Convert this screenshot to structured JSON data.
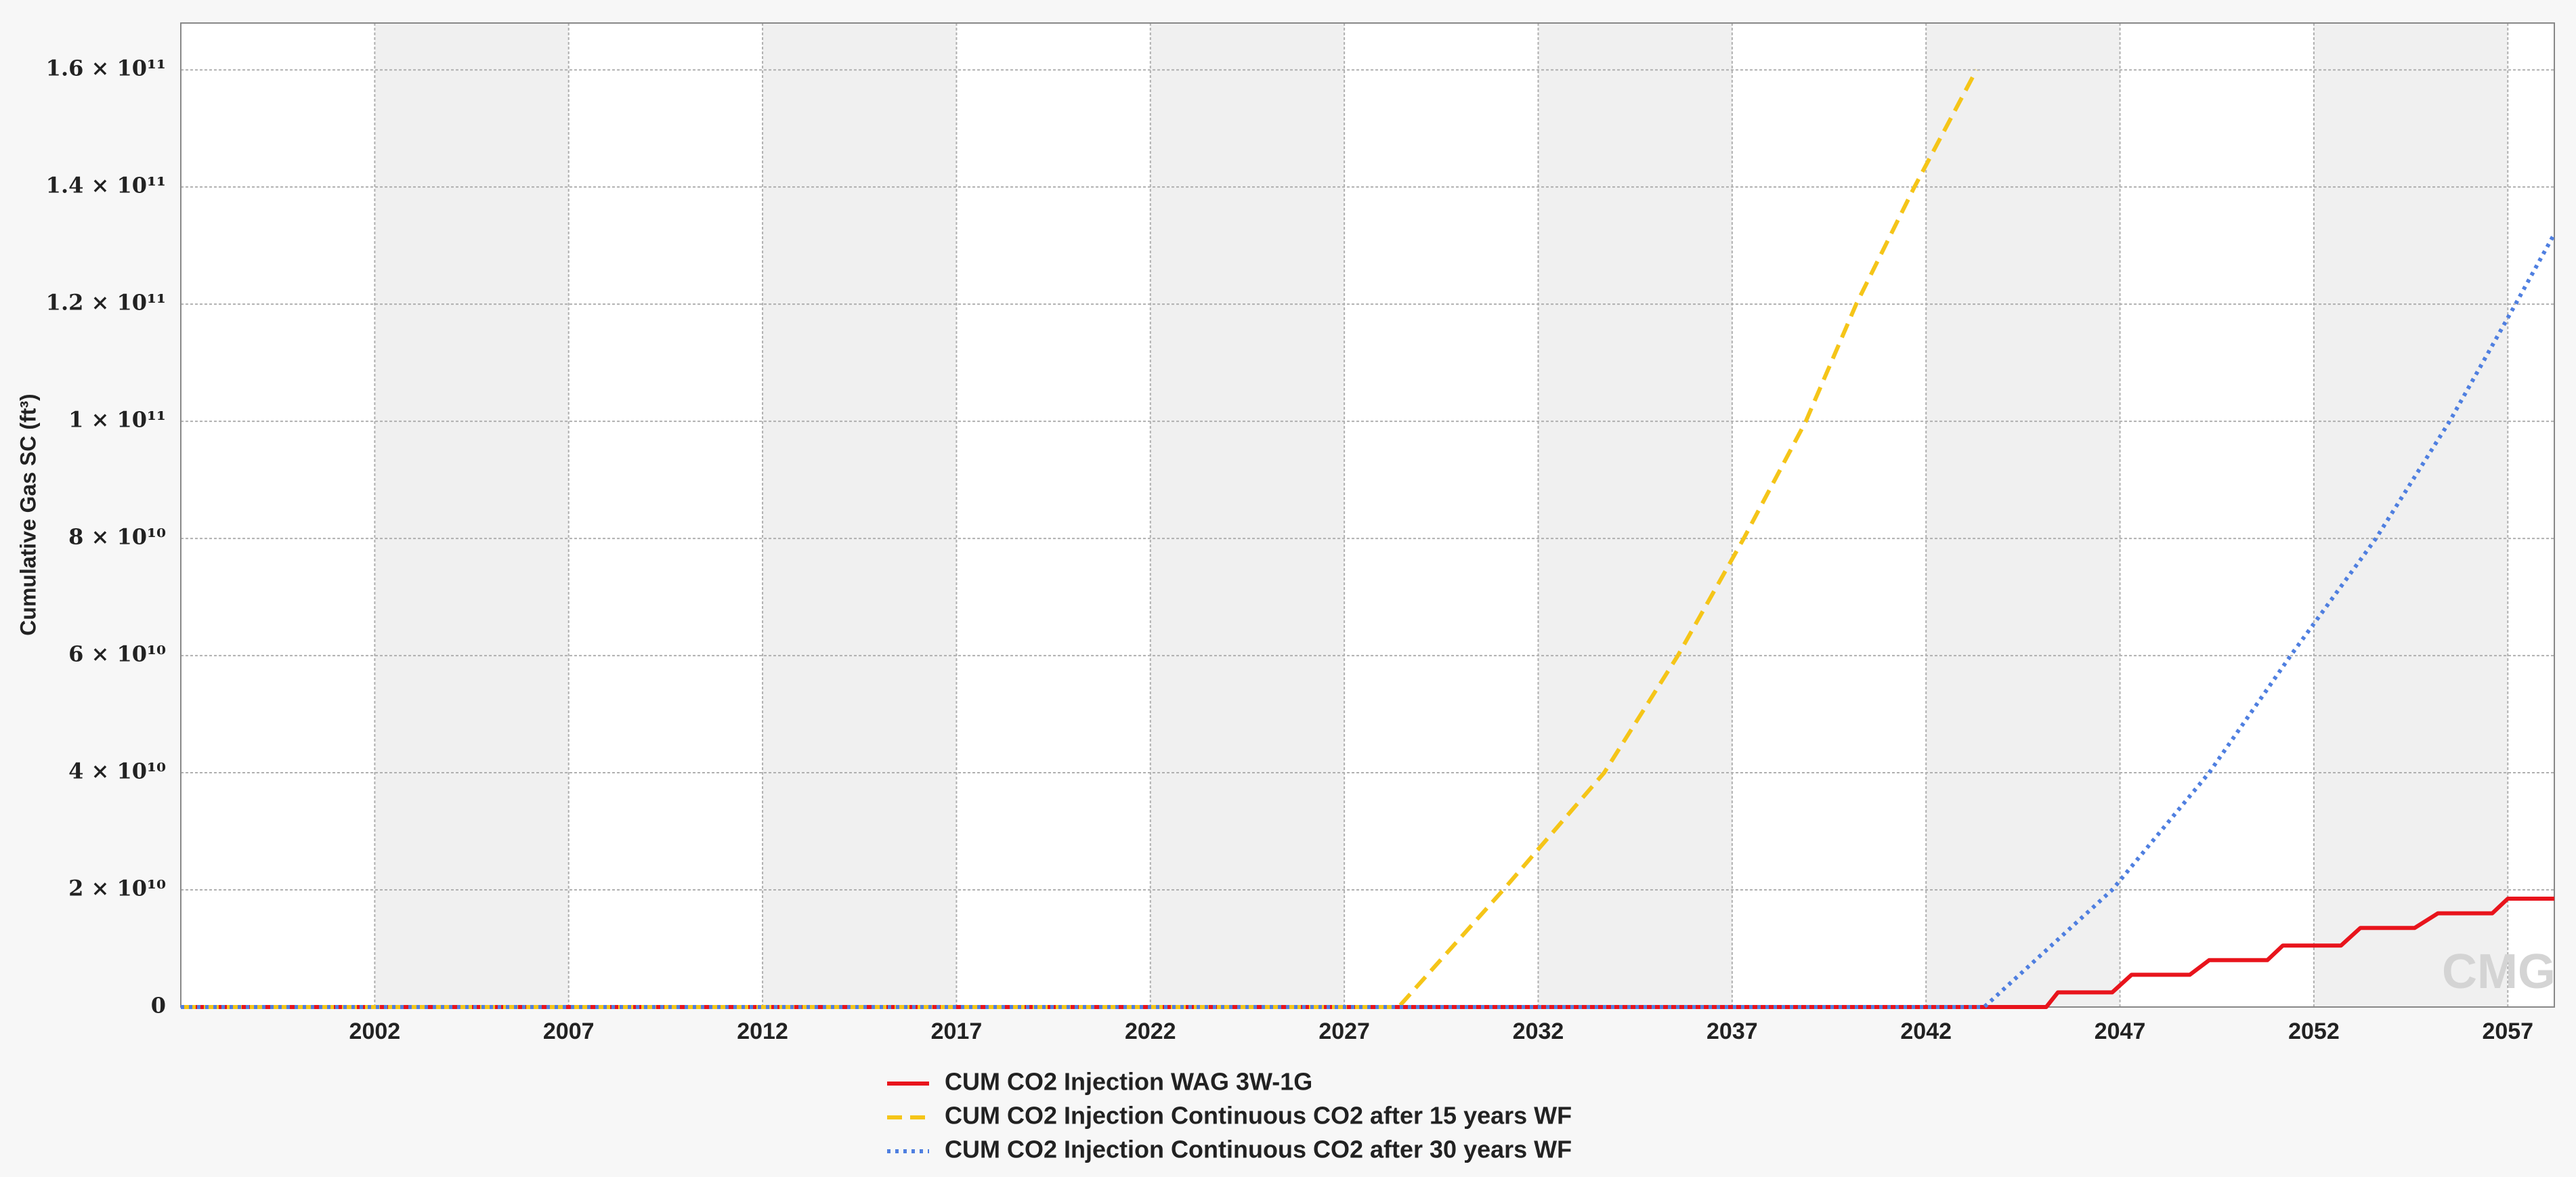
{
  "chart_data": {
    "type": "line",
    "y_label": "Cumulative Gas SC (ft³)",
    "watermark": "CMG",
    "xlim": [
      1997,
      2058.2
    ],
    "xticks": [
      2002,
      2007,
      2012,
      2017,
      2022,
      2027,
      2032,
      2037,
      2042,
      2047,
      2052,
      2057
    ],
    "ylim": [
      0,
      168000000000
    ],
    "yticks": [
      0,
      {
        "value": 20000000000,
        "label": "2 × 10¹⁰"
      },
      {
        "value": 40000000000,
        "label": "4 × 10¹⁰"
      },
      {
        "value": 60000000000,
        "label": "6 × 10¹⁰"
      },
      {
        "value": 80000000000,
        "label": "8 × 10¹⁰"
      },
      {
        "value": 100000000000,
        "label": "1 × 10¹¹"
      },
      {
        "value": 120000000000,
        "label": "1.2 × 10¹¹"
      },
      {
        "value": 140000000000,
        "label": "1.4 × 10¹¹"
      },
      {
        "value": 160000000000,
        "label": "1.6 × 10¹¹"
      }
    ],
    "grid": true,
    "legend": "bottom",
    "series": [
      {
        "name": "CUM CO2 Injection WAG 3W-1G",
        "color": "#e8141c",
        "line_style": "solid",
        "x": [
          1997,
          2045.1,
          2045.4,
          2046.8,
          2047.3,
          2048.8,
          2049.3,
          2050.8,
          2051.2,
          2052.7,
          2053.2,
          2054.6,
          2055.2,
          2056.6,
          2057.0,
          2058.2
        ],
        "values": [
          0,
          0,
          2500000000,
          2500000000,
          5500000000,
          5500000000,
          8000000000,
          8000000000,
          10500000000,
          10500000000,
          13500000000,
          13500000000,
          16000000000,
          16000000000,
          18500000000,
          18500000000
        ]
      },
      {
        "name": "CUM CO2 Injection Continuous CO2 after 15 years WF",
        "color": "#f5c518",
        "line_style": "dashed",
        "x": [
          1997,
          2028.4,
          2031.1,
          2033.7,
          2035.6,
          2037.3,
          2038.9,
          2040.2,
          2041.7,
          2043.3
        ],
        "values": [
          0,
          0,
          20000000000,
          40000000000,
          60000000000,
          80000000000,
          100000000000,
          120000000000,
          140000000000,
          160000000000
        ]
      },
      {
        "name": "CUM CO2 Injection Continuous CO2 after 30 years WF",
        "color": "#4f7fe0",
        "line_style": "dotted",
        "x": [
          1997,
          2043.5,
          2046.8,
          2049.3,
          2051.4,
          2053.6,
          2055.5,
          2057.2,
          2058.2
        ],
        "values": [
          0,
          0,
          20000000000,
          40000000000,
          60000000000,
          80000000000,
          100000000000,
          120000000000,
          132000000000
        ]
      }
    ]
  }
}
